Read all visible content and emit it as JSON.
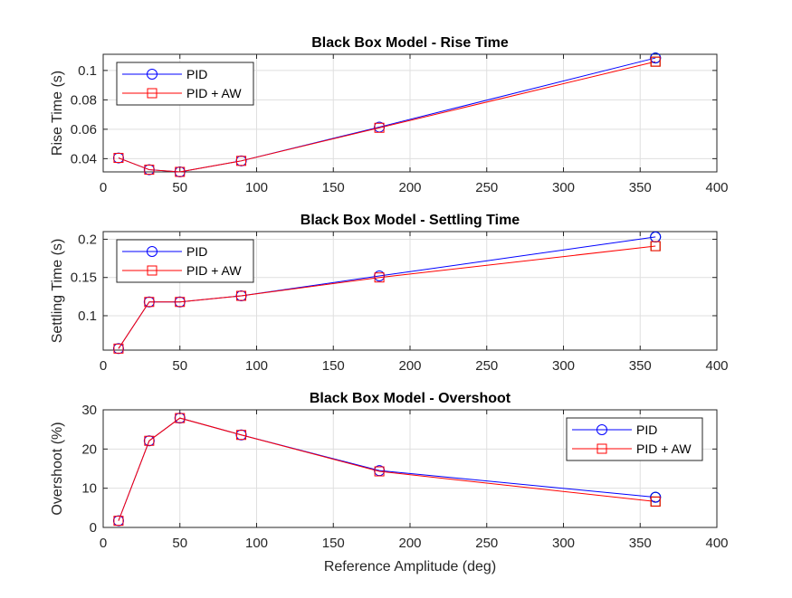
{
  "colors": {
    "pid": "#0000ff",
    "pid_aw": "#ff0000",
    "end_marker": "#00c000",
    "grid": "#dfdfdf",
    "axis": "#262626"
  },
  "chart_data": [
    {
      "type": "line",
      "title": "Black Box Model - Rise Time",
      "xlabel": "",
      "ylabel": "Rise Time (s)",
      "xlim": [
        0,
        400
      ],
      "ylim": [
        0.031,
        0.111
      ],
      "xticks": [
        0,
        50,
        100,
        150,
        200,
        250,
        300,
        350,
        400
      ],
      "yticks": [
        0.04,
        0.06,
        0.08,
        0.1
      ],
      "ytick_labels": [
        "0.04",
        "0.06",
        "0.08",
        "0.1"
      ],
      "grid": true,
      "legend_position": "top-left",
      "x": [
        10,
        30,
        50,
        90,
        180,
        360
      ],
      "series": [
        {
          "name": "PID",
          "marker": "circle",
          "values": [
            0.0405,
            0.0325,
            0.031,
            0.0385,
            0.0615,
            0.1085
          ]
        },
        {
          "name": "PID + AW",
          "marker": "square",
          "values": [
            0.0405,
            0.0325,
            0.031,
            0.0385,
            0.061,
            0.106
          ]
        }
      ]
    },
    {
      "type": "line",
      "title": "Black Box Model - Settling Time",
      "xlabel": "",
      "ylabel": "Settling Time (s)",
      "xlim": [
        0,
        400
      ],
      "ylim": [
        0.055,
        0.21
      ],
      "xticks": [
        0,
        50,
        100,
        150,
        200,
        250,
        300,
        350,
        400
      ],
      "yticks": [
        0.1,
        0.15,
        0.2
      ],
      "ytick_labels": [
        "0.1",
        "0.15",
        "0.2"
      ],
      "grid": true,
      "legend_position": "top-left",
      "x": [
        10,
        30,
        50,
        90,
        180,
        360
      ],
      "series": [
        {
          "name": "PID",
          "marker": "circle",
          "values": [
            0.057,
            0.118,
            0.118,
            0.126,
            0.152,
            0.203
          ]
        },
        {
          "name": "PID + AW",
          "marker": "square",
          "values": [
            0.057,
            0.118,
            0.118,
            0.126,
            0.15,
            0.191
          ]
        }
      ]
    },
    {
      "type": "line",
      "title": "Black Box Model - Overshoot",
      "xlabel": "Reference Amplitude (deg)",
      "ylabel": "Overshoot (%)",
      "xlim": [
        0,
        400
      ],
      "ylim": [
        0,
        30
      ],
      "xticks": [
        0,
        50,
        100,
        150,
        200,
        250,
        300,
        350,
        400
      ],
      "yticks": [
        0,
        10,
        20,
        30
      ],
      "ytick_labels": [
        "0",
        "10",
        "20",
        "30"
      ],
      "grid": true,
      "legend_position": "top-right",
      "x": [
        10,
        30,
        50,
        90,
        180,
        360
      ],
      "series": [
        {
          "name": "PID",
          "marker": "circle",
          "values": [
            1.7,
            22.1,
            27.9,
            23.6,
            14.5,
            7.7
          ]
        },
        {
          "name": "PID + AW",
          "marker": "square",
          "values": [
            1.7,
            22.1,
            27.9,
            23.6,
            14.3,
            6.6
          ]
        }
      ]
    }
  ]
}
